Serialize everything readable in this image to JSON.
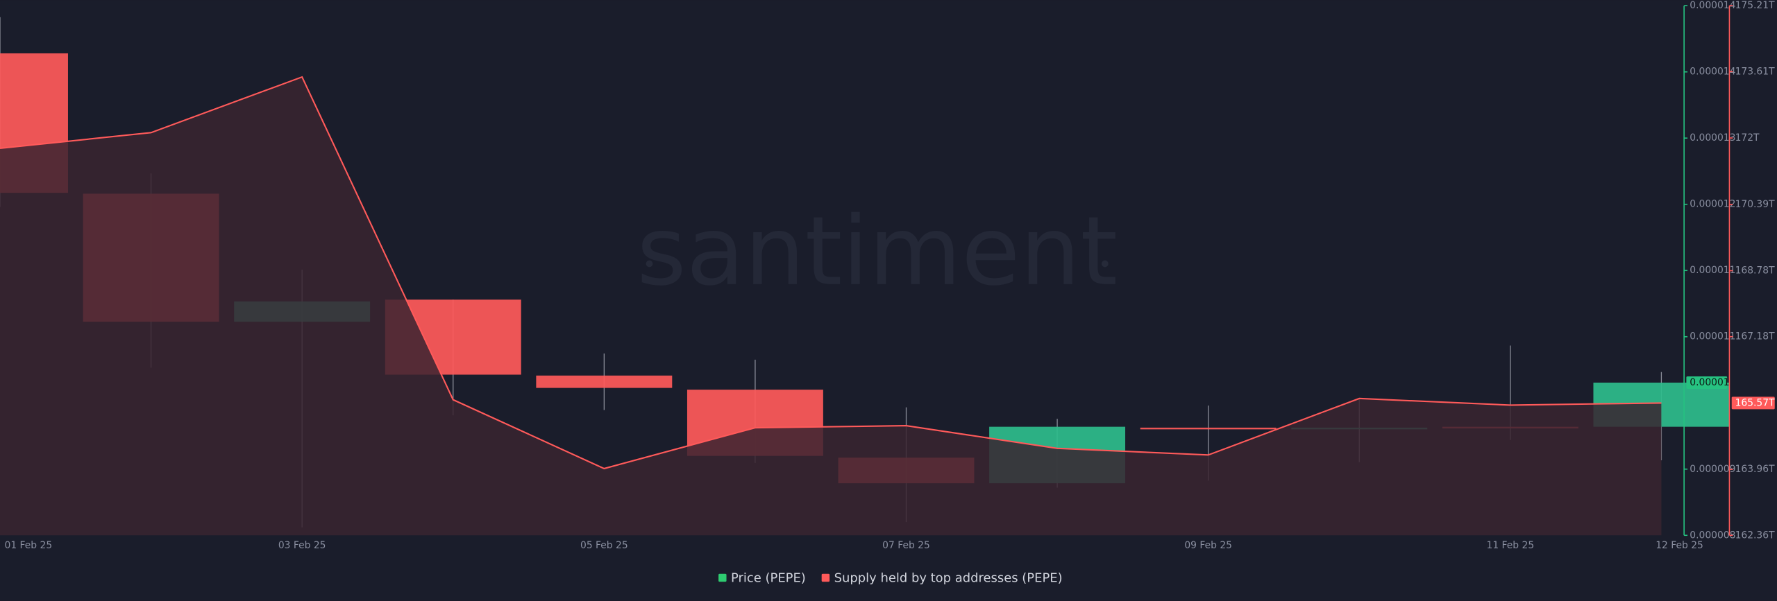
{
  "chart_data": {
    "type": "candlestick",
    "watermark": "santiment",
    "categories": [
      "01 Feb 25",
      null,
      "03 Feb 25",
      null,
      "05 Feb 25",
      null,
      "07 Feb 25",
      null,
      "09 Feb 25",
      null,
      "11 Feb 25",
      "12 Feb 25"
    ],
    "ylim": [
      8.3e-06,
      1.43e-05
    ],
    "yticks": [
      {
        "value": 8.3e-06,
        "label": "0.000008"
      },
      {
        "value": 9.05e-06,
        "label": "0.000009"
      },
      {
        "value": 1.055e-05,
        "label": "0.000011"
      },
      {
        "value": 1.13e-05,
        "label": "0.000011"
      },
      {
        "value": 1.205e-05,
        "label": "0.000012"
      },
      {
        "value": 1.28e-05,
        "label": "0.000013"
      },
      {
        "value": 1.355e-05,
        "label": "0.000014"
      },
      {
        "value": 1.43e-05,
        "label": "0.000014"
      }
    ],
    "y2lim": [
      162.36,
      175.21
    ],
    "y2ticks": [
      {
        "value": 162.36,
        "label": "162.36T"
      },
      {
        "value": 163.96,
        "label": "163.96T"
      },
      {
        "value": 167.18,
        "label": "167.18T"
      },
      {
        "value": 168.78,
        "label": "168.78T"
      },
      {
        "value": 170.39,
        "label": "170.39T"
      },
      {
        "value": 172,
        "label": "172T"
      },
      {
        "value": 173.61,
        "label": "173.61T"
      },
      {
        "value": 175.21,
        "label": "175.21T"
      }
    ],
    "series": [
      {
        "name": "Price (PEPE)",
        "type": "candlestick",
        "color": "#26c281",
        "up_color": "#2ebd8c",
        "down_color": "#ff5a5a",
        "open": [
          1.376e-05,
          1.217e-05,
          1.072e-05,
          1.097e-05,
          1.011e-05,
          9.95e-06,
          9.18e-06,
          8.89e-06,
          9.52e-06,
          9.51e-06,
          9.53e-06,
          9.53e-06
        ],
        "high": [
          1.417e-05,
          1.24e-05,
          1.131e-05,
          1.097e-05,
          1.036e-05,
          1.029e-05,
          9.75e-06,
          9.62e-06,
          9.77e-06,
          9.85e-06,
          1.045e-05,
          1.015e-05
        ],
        "low": [
          1.202e-05,
          1.02e-05,
          8.39e-06,
          9.66e-06,
          9.72e-06,
          9.12e-06,
          8.45e-06,
          8.84e-06,
          8.92e-06,
          9.13e-06,
          9.38e-06,
          9.15e-06
        ],
        "close": [
          1.218e-05,
          1.072e-05,
          1.095e-05,
          1.012e-05,
          9.97e-06,
          9.2e-06,
          8.89e-06,
          9.53e-06,
          9.51e-06,
          9.52e-06,
          9.52e-06,
          1.003e-05
        ],
        "last_label": "0.00001"
      },
      {
        "name": "Supply held by top addresses (PEPE)",
        "type": "area",
        "axis": "y2",
        "color": "#ff5a5a",
        "values": [
          171.75,
          172.13,
          173.48,
          165.65,
          163.98,
          164.97,
          165.02,
          164.47,
          164.31,
          165.68,
          165.52,
          165.57
        ],
        "last_label": "165.57T"
      }
    ]
  }
}
